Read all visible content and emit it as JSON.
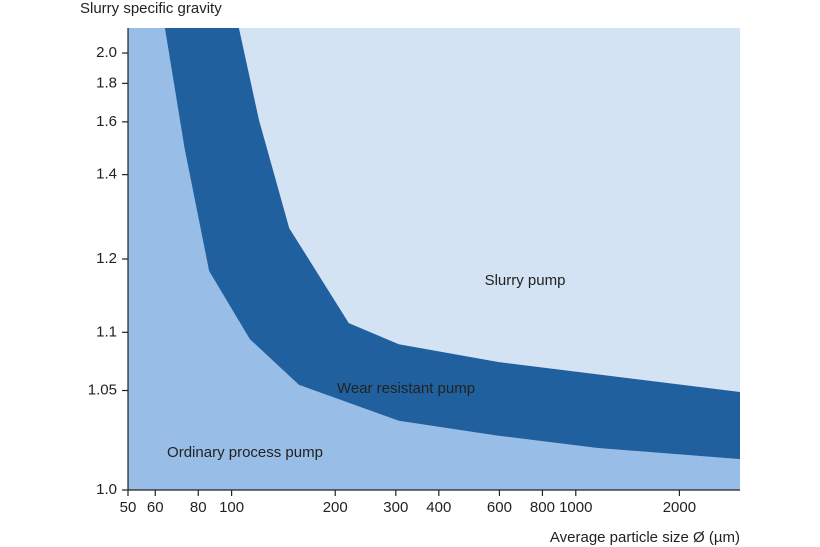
{
  "chart_data": {
    "type": "area",
    "y_label": "Slurry specific gravity",
    "x_label": "Average particle size Ø (µm)",
    "xscale": "log",
    "xlim": [
      50,
      3000
    ],
    "xticks": [
      50,
      60,
      80,
      100,
      200,
      300,
      400,
      600,
      800,
      1000,
      2000
    ],
    "ylim": [
      1.0,
      2.2
    ],
    "yticks": [
      {
        "value": 1.0,
        "label": "1.0"
      },
      1.05,
      1.1,
      1.2,
      1.4,
      1.6,
      1.8,
      {
        "value": 2.0,
        "label": "2.0"
      }
    ],
    "series": [
      {
        "name": "Ordinary process pump",
        "color": "#98bde6",
        "x": [
          64,
          73,
          86,
          113,
          157,
          306,
          595,
          1158,
          3000
        ],
        "values": [
          2.2,
          1.49,
          1.18,
          1.093,
          1.054,
          1.031,
          1.023,
          1.017,
          1.012
        ]
      },
      {
        "name": "Wear resistant pump",
        "color": "#21609f",
        "x": [
          105,
          120,
          147,
          219,
          306,
          595,
          3000
        ],
        "values": [
          2.2,
          1.61,
          1.26,
          1.11,
          1.088,
          1.072,
          1.049
        ]
      },
      {
        "name": "Slurry pump",
        "color": "#d3e3f3"
      }
    ]
  }
}
